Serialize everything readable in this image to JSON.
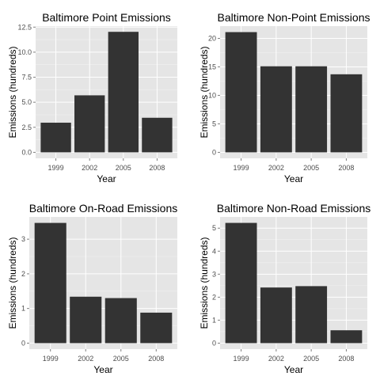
{
  "chart_data": [
    {
      "type": "bar",
      "title": "Baltimore Point Emissions",
      "xlabel": "Year",
      "ylabel": "Emissions (hundreds)",
      "categories": [
        "1999",
        "2002",
        "2005",
        "2008"
      ],
      "values": [
        2.96,
        5.69,
        12.03,
        3.45
      ],
      "ylim": [
        -0.6,
        12.6
      ],
      "yticks": [
        0,
        2.5,
        5,
        7.5,
        10,
        12.5
      ],
      "ytick_labels": [
        "0.0",
        "2.5",
        "5.0",
        "7.5",
        "10.0",
        "12.5"
      ],
      "grid": true,
      "background_color": "#e5e5e5",
      "bar_color": "#333333"
    },
    {
      "type": "bar",
      "title": "Baltimore Non-Point Emissions",
      "xlabel": "Year",
      "ylabel": "Emissions (hundreds)",
      "categories": [
        "1999",
        "2002",
        "2005",
        "2008"
      ],
      "values": [
        21.1,
        15.1,
        15.1,
        13.7
      ],
      "ylim": [
        -1.05,
        22.15
      ],
      "yticks": [
        0,
        5,
        10,
        15,
        20
      ],
      "ytick_labels": [
        "0",
        "5",
        "10",
        "15",
        "20"
      ],
      "grid": true,
      "background_color": "#e5e5e5",
      "bar_color": "#333333"
    },
    {
      "type": "bar",
      "title": "Baltimore On-Road Emissions",
      "xlabel": "Year",
      "ylabel": "Emissions (hundreds)",
      "categories": [
        "1999",
        "2002",
        "2005",
        "2008"
      ],
      "values": [
        3.47,
        1.34,
        1.3,
        0.88
      ],
      "ylim": [
        -0.173,
        3.643
      ],
      "yticks": [
        0,
        1,
        2,
        3
      ],
      "ytick_labels": [
        "0",
        "1",
        "2",
        "3"
      ],
      "grid": true,
      "background_color": "#e5e5e5",
      "bar_color": "#333333"
    },
    {
      "type": "bar",
      "title": "Baltimore Non-Road Emissions",
      "xlabel": "Year",
      "ylabel": "Emissions (hundreds)",
      "categories": [
        "1999",
        "2002",
        "2005",
        "2008"
      ],
      "values": [
        5.23,
        2.42,
        2.48,
        0.56
      ],
      "ylim": [
        -0.26,
        5.49
      ],
      "yticks": [
        0,
        1,
        2,
        3,
        4,
        5
      ],
      "ytick_labels": [
        "0",
        "1",
        "2",
        "3",
        "4",
        "5"
      ],
      "grid": true,
      "background_color": "#e5e5e5",
      "bar_color": "#333333"
    }
  ]
}
